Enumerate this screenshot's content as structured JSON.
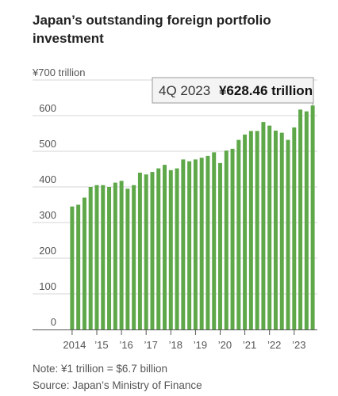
{
  "title": "Japan’s outstanding foreign portfolio investment",
  "callout": {
    "label": "4Q 2023",
    "value": "¥628.46 trillion"
  },
  "note": "Note: ¥1 trillion = $6.7 billion",
  "source": "Source: Japan’s Ministry of Finance",
  "colors": {
    "bar": "#5fa84a",
    "grid": "#d6d6d6",
    "axis": "#555555",
    "text": "#555555"
  },
  "chart_data": {
    "type": "bar",
    "ylabel": "",
    "xlabel": "",
    "ylim": [
      0,
      700
    ],
    "yticks": [
      {
        "value": 0,
        "label": "0"
      },
      {
        "value": 100,
        "label": "100"
      },
      {
        "value": 200,
        "label": "200"
      },
      {
        "value": 300,
        "label": "300"
      },
      {
        "value": 400,
        "label": "400"
      },
      {
        "value": 500,
        "label": "500"
      },
      {
        "value": 600,
        "label": "600"
      },
      {
        "value": 700,
        "label": "¥700 trillion"
      }
    ],
    "xticks": [
      {
        "index": 0,
        "label": "2014"
      },
      {
        "index": 4,
        "label": "’15"
      },
      {
        "index": 8,
        "label": "’16"
      },
      {
        "index": 12,
        "label": "’17"
      },
      {
        "index": 16,
        "label": "’18"
      },
      {
        "index": 20,
        "label": "’19"
      },
      {
        "index": 24,
        "label": "’20"
      },
      {
        "index": 28,
        "label": "’21"
      },
      {
        "index": 32,
        "label": "’22"
      },
      {
        "index": 36,
        "label": "’23"
      }
    ],
    "categories": [
      "1Q 2014",
      "2Q 2014",
      "3Q 2014",
      "4Q 2014",
      "1Q 2015",
      "2Q 2015",
      "3Q 2015",
      "4Q 2015",
      "1Q 2016",
      "2Q 2016",
      "3Q 2016",
      "4Q 2016",
      "1Q 2017",
      "2Q 2017",
      "3Q 2017",
      "4Q 2017",
      "1Q 2018",
      "2Q 2018",
      "3Q 2018",
      "4Q 2018",
      "1Q 2019",
      "2Q 2019",
      "3Q 2019",
      "4Q 2019",
      "1Q 2020",
      "2Q 2020",
      "3Q 2020",
      "4Q 2020",
      "1Q 2021",
      "2Q 2021",
      "3Q 2021",
      "4Q 2021",
      "1Q 2022",
      "2Q 2022",
      "3Q 2022",
      "4Q 2022",
      "1Q 2023",
      "2Q 2023",
      "3Q 2023",
      "4Q 2023"
    ],
    "values": [
      345,
      350,
      370,
      400,
      405,
      405,
      400,
      412,
      417,
      395,
      405,
      440,
      435,
      442,
      452,
      462,
      447,
      452,
      477,
      472,
      477,
      482,
      487,
      497,
      467,
      502,
      507,
      532,
      547,
      557,
      557,
      582,
      572,
      558,
      552,
      532,
      567,
      617,
      612,
      628.46
    ]
  }
}
